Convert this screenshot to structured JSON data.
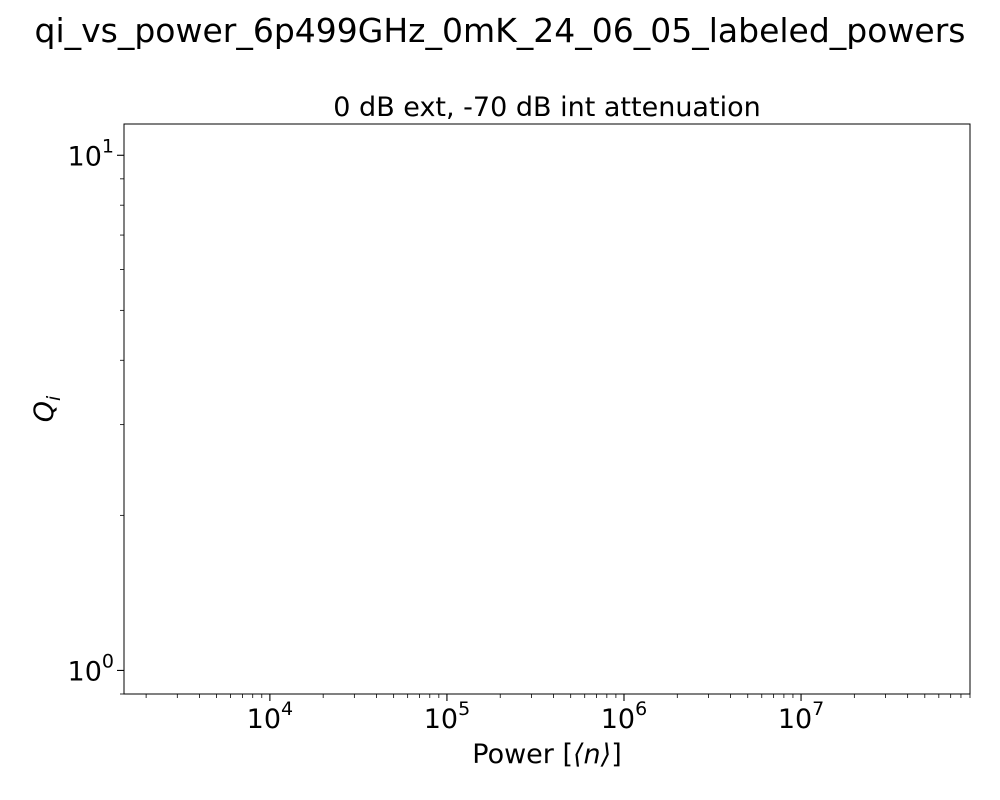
{
  "chart_data": {
    "type": "scatter",
    "suptitle": "qi_vs_power_6p499GHz_0mK_24_06_05_labeled_powers",
    "title": "0 dB ext, -70 dB int attenuation",
    "xlabel_prefix": "Power [",
    "xlabel_var": "⟨n⟩",
    "xlabel_suffix": "]",
    "ylabel_main": "Q",
    "ylabel_sub": "i",
    "x_scale": "log",
    "y_scale": "log",
    "xlim": [
      1500,
      90000000
    ],
    "ylim": [
      0.9,
      11.5
    ],
    "x_ticks": [
      {
        "base": "10",
        "exp": "4",
        "value": 10000
      },
      {
        "base": "10",
        "exp": "5",
        "value": 100000
      },
      {
        "base": "10",
        "exp": "6",
        "value": 1000000
      },
      {
        "base": "10",
        "exp": "7",
        "value": 10000000
      }
    ],
    "y_ticks": [
      {
        "base": "10",
        "exp": "0",
        "value": 1
      },
      {
        "base": "10",
        "exp": "1",
        "value": 10
      }
    ],
    "grid": false,
    "series": []
  }
}
